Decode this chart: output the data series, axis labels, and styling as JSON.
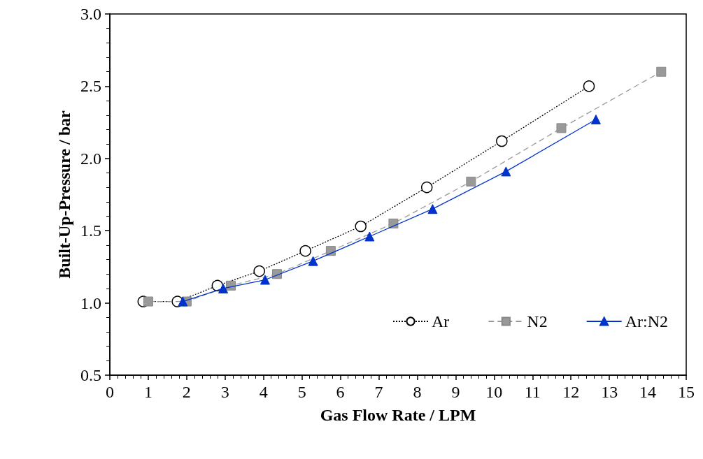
{
  "chart_data": {
    "type": "line",
    "xlabel": "Gas Flow Rate / LPM",
    "ylabel": "Built-Up-Pressure / bar",
    "xlim": [
      0,
      15
    ],
    "xticks": [
      0,
      1,
      2,
      3,
      4,
      5,
      6,
      7,
      8,
      9,
      10,
      11,
      12,
      13,
      14,
      15
    ],
    "ylim": [
      0.5,
      3.0
    ],
    "yticks": [
      {
        "value": 0.5,
        "label": "0.5"
      },
      {
        "value": 1.0,
        "label": "1.0"
      },
      {
        "value": 1.5,
        "label": "1.5"
      },
      {
        "value": 2.0,
        "label": "2.0"
      },
      {
        "value": 2.5,
        "label": "2.5"
      },
      {
        "value": 3.0,
        "label": "3.0"
      }
    ],
    "grid": false,
    "legend": "bottom right",
    "series": [
      {
        "name": "Ar",
        "color": "#000000",
        "marker": "circle",
        "line_style": "dotted",
        "x": [
          0.87,
          1.76,
          2.8,
          3.89,
          5.09,
          6.53,
          8.25,
          10.2,
          12.47
        ],
        "values": [
          1.01,
          1.01,
          1.12,
          1.22,
          1.36,
          1.53,
          1.8,
          2.12,
          2.5
        ]
      },
      {
        "name": "N2",
        "color": "#999999",
        "marker": "square",
        "line_style": "dashed",
        "x": [
          1.0,
          2.0,
          3.15,
          4.35,
          5.75,
          7.38,
          9.4,
          11.75,
          14.35
        ],
        "values": [
          1.01,
          1.01,
          1.12,
          1.2,
          1.36,
          1.55,
          1.84,
          2.21,
          2.6
        ]
      },
      {
        "name": "Ar:N2",
        "color": "#0033cc",
        "marker": "triangle",
        "line_style": "solid",
        "x": [
          1.9,
          2.95,
          4.04,
          5.29,
          6.76,
          8.4,
          10.31,
          12.65
        ],
        "values": [
          1.01,
          1.1,
          1.16,
          1.29,
          1.46,
          1.65,
          1.91,
          2.27
        ]
      }
    ]
  }
}
